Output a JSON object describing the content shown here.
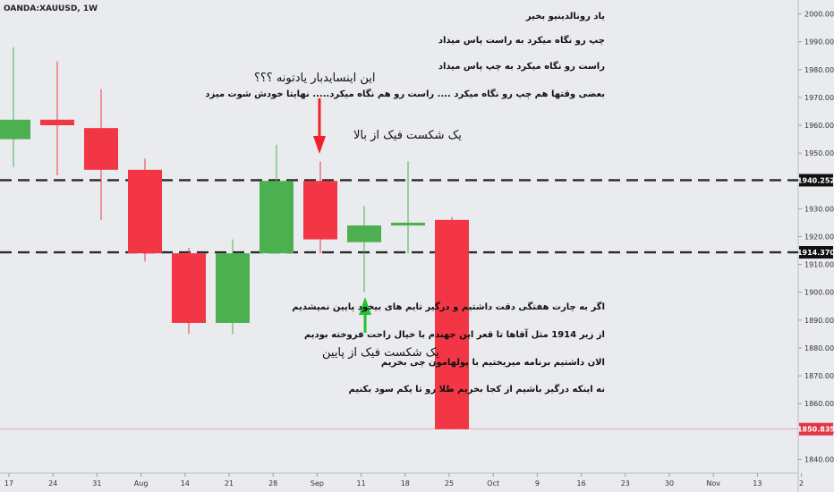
{
  "symbol": "OANDA:XAUUSD, 1W",
  "colors": {
    "background": "#e9ebef",
    "up": "#4caf50",
    "down": "#f23645",
    "level_box": "#111111",
    "last_price_box": "#e03646",
    "up_arrow": "#22c232",
    "down_arrow": "#f2202a"
  },
  "annotations": {
    "line1": "یاد رونالدینیو بخیر",
    "line2": "چپ رو نگاه میکرد به راست پاس میداد",
    "line3": "راست رو نگاه میکرد به چپ پاس میداد",
    "line4": "بعضی وقتها هم چپ رو نگاه میکرد .... راست رو هم نگاه میکرد..... نهایتا خودش شوت میزد",
    "question": "این اینسایدبار یادتونه ؟؟؟",
    "fake_top": "یک شکست فیک از بالا",
    "fake_bottom": "یک شکست فیک از پایین",
    "note1": "اگر به چارت هفتگی دقت داشتیم و درگیر تایم های بیخود پایین نمیشدیم",
    "note2": "از زیر 1914 مثل آقاها تا قعر این جهندم با خیال راحت فروخته بودیم",
    "note3": "الان داشتیم برنامه میریختیم با پولهامون چی بخریم",
    "note4": "نه اینکه درگیر باشیم از کجا بخریم طلا رو تا یکم سود بکنیم"
  },
  "chart_data": {
    "type": "candlestick",
    "ylim": [
      1835,
      2005
    ],
    "y_ticks": [
      "1840.00",
      "1850.00",
      "1860.00",
      "1870.00",
      "1880.00",
      "1890.00",
      "1900.00",
      "1910.00",
      "1920.00",
      "1930.00",
      "1950.00",
      "1960.00",
      "1970.00",
      "1980.00",
      "1990.00",
      "2000.00"
    ],
    "x_ticks": [
      "17",
      "24",
      "31",
      "Aug",
      "14",
      "21",
      "28",
      "Sep",
      "11",
      "18",
      "25",
      "Oct",
      "9",
      "16",
      "23",
      "30",
      "Nov",
      "13",
      "2"
    ],
    "candles": [
      {
        "o": 1955,
        "h": 1988,
        "l": 1945,
        "c": 1962
      },
      {
        "o": 1962,
        "h": 1983,
        "l": 1942,
        "c": 1960
      },
      {
        "o": 1959,
        "h": 1973,
        "l": 1926,
        "c": 1944
      },
      {
        "o": 1944,
        "h": 1948,
        "l": 1911,
        "c": 1914
      },
      {
        "o": 1914,
        "h": 1916,
        "l": 1885,
        "c": 1889
      },
      {
        "o": 1889,
        "h": 1919,
        "l": 1885,
        "c": 1914
      },
      {
        "o": 1914,
        "h": 1953,
        "l": 1914,
        "c": 1940
      },
      {
        "o": 1940,
        "h": 1947,
        "l": 1914,
        "c": 1919
      },
      {
        "o": 1918,
        "h": 1931,
        "l": 1900,
        "c": 1924
      },
      {
        "o": 1924,
        "h": 1947,
        "l": 1914,
        "c": 1925
      },
      {
        "o": 1926,
        "h": 1927,
        "l": 1850.835,
        "c": 1850.835
      }
    ],
    "levels": [
      {
        "value": 1940.252,
        "label": "1940.252"
      },
      {
        "value": 1914.37,
        "label": "1914.370"
      }
    ],
    "last_price": {
      "value": 1850.835,
      "label": "1850.835"
    }
  }
}
